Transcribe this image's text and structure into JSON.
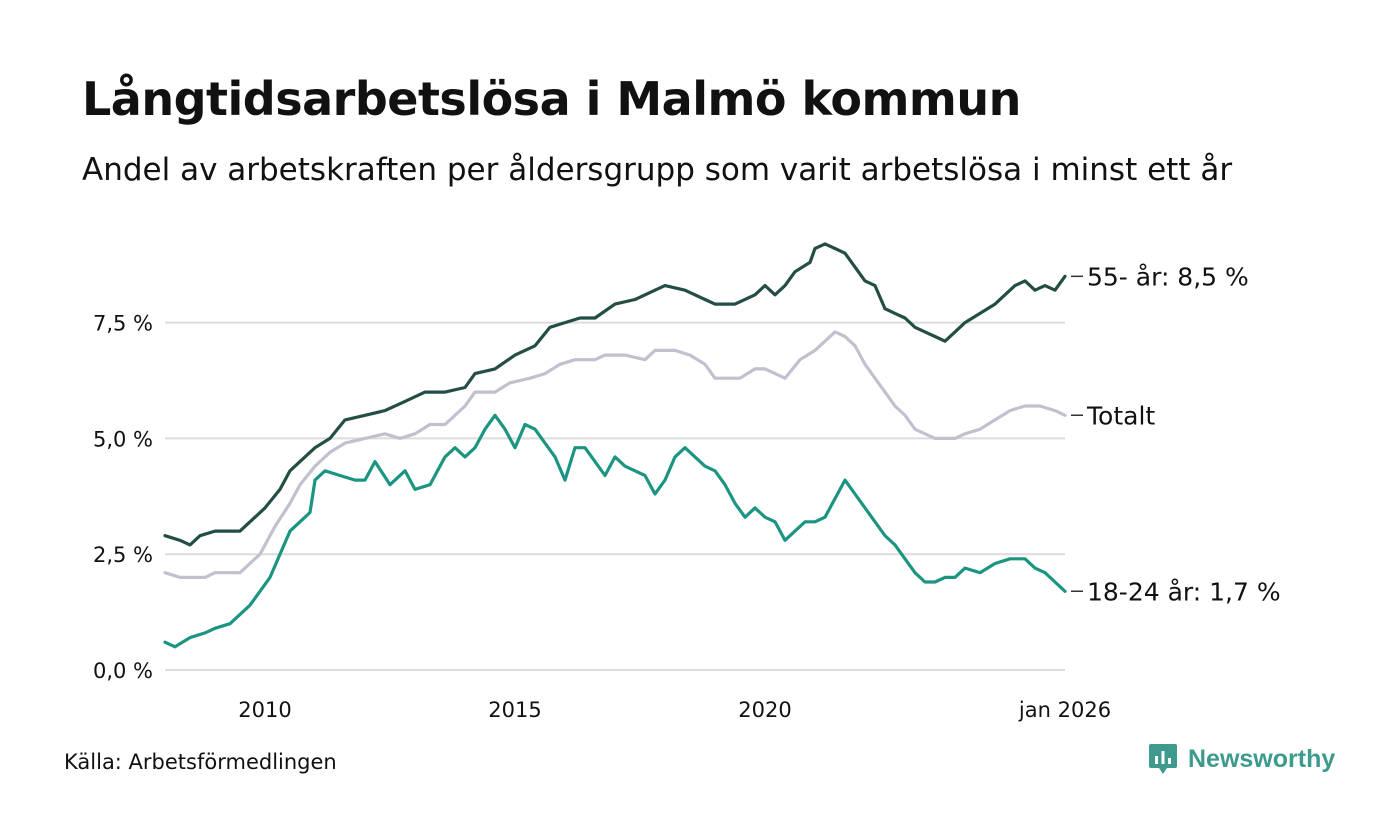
{
  "header": {
    "title": "Långtidsarbetslösa i Malmö kommun",
    "subtitle": "Andel av arbetskraften per åldersgrupp som varit arbetslösa i minst ett år"
  },
  "footer": {
    "source": "Källa: Arbetsförmedlingen",
    "brand": "Newsworthy"
  },
  "colors": {
    "age_55": "#234d45",
    "total": "#c3bfce",
    "age_18_24": "#1b9582",
    "grid": "#dcdcdc",
    "brand": "#3e9a8c"
  },
  "chart_data": {
    "type": "line",
    "title": "Långtidsarbetslösa i Malmö kommun",
    "subtitle": "Andel av arbetskraften per åldersgrupp som varit arbetslösa i minst ett år",
    "xlim": [
      2008.0,
      2026.0
    ],
    "ylim": [
      0,
      9.5
    ],
    "y_ticks": [
      0,
      2.5,
      5.0,
      7.5
    ],
    "y_tick_labels": [
      "0,0 %",
      "2,5 %",
      "5,0 %",
      "7,5 %"
    ],
    "x_ticks": [
      2010,
      2015,
      2020,
      2026.0
    ],
    "x_tick_labels": [
      "2010",
      "2015",
      "2020",
      "jan 2026"
    ],
    "grid": "horizontal",
    "series": [
      {
        "name": "55- år",
        "end_label": "55- år: 8,5 %",
        "color_key": "age_55",
        "points": [
          [
            2008.0,
            2.9
          ],
          [
            2008.3,
            2.8
          ],
          [
            2008.5,
            2.7
          ],
          [
            2008.7,
            2.9
          ],
          [
            2009.0,
            3.0
          ],
          [
            2009.5,
            3.0
          ],
          [
            2009.8,
            3.3
          ],
          [
            2010.0,
            3.5
          ],
          [
            2010.3,
            3.9
          ],
          [
            2010.5,
            4.3
          ],
          [
            2010.8,
            4.6
          ],
          [
            2011.0,
            4.8
          ],
          [
            2011.3,
            5.0
          ],
          [
            2011.6,
            5.4
          ],
          [
            2012.0,
            5.5
          ],
          [
            2012.4,
            5.6
          ],
          [
            2012.8,
            5.8
          ],
          [
            2013.2,
            6.0
          ],
          [
            2013.6,
            6.0
          ],
          [
            2014.0,
            6.1
          ],
          [
            2014.2,
            6.4
          ],
          [
            2014.6,
            6.5
          ],
          [
            2015.0,
            6.8
          ],
          [
            2015.4,
            7.0
          ],
          [
            2015.7,
            7.4
          ],
          [
            2016.0,
            7.5
          ],
          [
            2016.3,
            7.6
          ],
          [
            2016.6,
            7.6
          ],
          [
            2017.0,
            7.9
          ],
          [
            2017.4,
            8.0
          ],
          [
            2017.8,
            8.2
          ],
          [
            2018.0,
            8.3
          ],
          [
            2018.4,
            8.2
          ],
          [
            2018.8,
            8.0
          ],
          [
            2019.0,
            7.9
          ],
          [
            2019.4,
            7.9
          ],
          [
            2019.8,
            8.1
          ],
          [
            2020.0,
            8.3
          ],
          [
            2020.2,
            8.1
          ],
          [
            2020.4,
            8.3
          ],
          [
            2020.6,
            8.6
          ],
          [
            2020.9,
            8.8
          ],
          [
            2021.0,
            9.1
          ],
          [
            2021.2,
            9.2
          ],
          [
            2021.4,
            9.1
          ],
          [
            2021.6,
            9.0
          ],
          [
            2021.8,
            8.7
          ],
          [
            2022.0,
            8.4
          ],
          [
            2022.2,
            8.3
          ],
          [
            2022.4,
            7.8
          ],
          [
            2022.6,
            7.7
          ],
          [
            2022.8,
            7.6
          ],
          [
            2023.0,
            7.4
          ],
          [
            2023.2,
            7.3
          ],
          [
            2023.4,
            7.2
          ],
          [
            2023.6,
            7.1
          ],
          [
            2023.8,
            7.3
          ],
          [
            2024.0,
            7.5
          ],
          [
            2024.3,
            7.7
          ],
          [
            2024.6,
            7.9
          ],
          [
            2024.8,
            8.1
          ],
          [
            2025.0,
            8.3
          ],
          [
            2025.2,
            8.4
          ],
          [
            2025.4,
            8.2
          ],
          [
            2025.6,
            8.3
          ],
          [
            2025.8,
            8.2
          ],
          [
            2026.0,
            8.5
          ]
        ]
      },
      {
        "name": "Totalt",
        "end_label": "Totalt",
        "color_key": "total",
        "points": [
          [
            2008.0,
            2.1
          ],
          [
            2008.3,
            2.0
          ],
          [
            2008.8,
            2.0
          ],
          [
            2009.0,
            2.1
          ],
          [
            2009.5,
            2.1
          ],
          [
            2009.9,
            2.5
          ],
          [
            2010.2,
            3.1
          ],
          [
            2010.5,
            3.6
          ],
          [
            2010.7,
            4.0
          ],
          [
            2011.0,
            4.4
          ],
          [
            2011.3,
            4.7
          ],
          [
            2011.6,
            4.9
          ],
          [
            2012.0,
            5.0
          ],
          [
            2012.4,
            5.1
          ],
          [
            2012.7,
            5.0
          ],
          [
            2013.0,
            5.1
          ],
          [
            2013.3,
            5.3
          ],
          [
            2013.6,
            5.3
          ],
          [
            2013.8,
            5.5
          ],
          [
            2014.0,
            5.7
          ],
          [
            2014.2,
            6.0
          ],
          [
            2014.6,
            6.0
          ],
          [
            2014.9,
            6.2
          ],
          [
            2015.3,
            6.3
          ],
          [
            2015.6,
            6.4
          ],
          [
            2015.9,
            6.6
          ],
          [
            2016.2,
            6.7
          ],
          [
            2016.6,
            6.7
          ],
          [
            2016.8,
            6.8
          ],
          [
            2017.2,
            6.8
          ],
          [
            2017.6,
            6.7
          ],
          [
            2017.8,
            6.9
          ],
          [
            2018.2,
            6.9
          ],
          [
            2018.5,
            6.8
          ],
          [
            2018.8,
            6.6
          ],
          [
            2019.0,
            6.3
          ],
          [
            2019.5,
            6.3
          ],
          [
            2019.8,
            6.5
          ],
          [
            2020.0,
            6.5
          ],
          [
            2020.2,
            6.4
          ],
          [
            2020.4,
            6.3
          ],
          [
            2020.7,
            6.7
          ],
          [
            2021.0,
            6.9
          ],
          [
            2021.2,
            7.1
          ],
          [
            2021.4,
            7.3
          ],
          [
            2021.6,
            7.2
          ],
          [
            2021.8,
            7.0
          ],
          [
            2022.0,
            6.6
          ],
          [
            2022.2,
            6.3
          ],
          [
            2022.4,
            6.0
          ],
          [
            2022.6,
            5.7
          ],
          [
            2022.8,
            5.5
          ],
          [
            2023.0,
            5.2
          ],
          [
            2023.2,
            5.1
          ],
          [
            2023.4,
            5.0
          ],
          [
            2023.8,
            5.0
          ],
          [
            2024.0,
            5.1
          ],
          [
            2024.3,
            5.2
          ],
          [
            2024.6,
            5.4
          ],
          [
            2024.9,
            5.6
          ],
          [
            2025.2,
            5.7
          ],
          [
            2025.5,
            5.7
          ],
          [
            2025.8,
            5.6
          ],
          [
            2026.0,
            5.5
          ]
        ]
      },
      {
        "name": "18-24 år",
        "end_label": "18-24 år: 1,7 %",
        "color_key": "age_18_24",
        "points": [
          [
            2008.0,
            0.6
          ],
          [
            2008.2,
            0.5
          ],
          [
            2008.5,
            0.7
          ],
          [
            2008.8,
            0.8
          ],
          [
            2009.0,
            0.9
          ],
          [
            2009.3,
            1.0
          ],
          [
            2009.5,
            1.2
          ],
          [
            2009.7,
            1.4
          ],
          [
            2009.9,
            1.7
          ],
          [
            2010.1,
            2.0
          ],
          [
            2010.3,
            2.5
          ],
          [
            2010.5,
            3.0
          ],
          [
            2010.7,
            3.2
          ],
          [
            2010.9,
            3.4
          ],
          [
            2011.0,
            4.1
          ],
          [
            2011.2,
            4.3
          ],
          [
            2011.5,
            4.2
          ],
          [
            2011.8,
            4.1
          ],
          [
            2012.0,
            4.1
          ],
          [
            2012.2,
            4.5
          ],
          [
            2012.5,
            4.0
          ],
          [
            2012.8,
            4.3
          ],
          [
            2013.0,
            3.9
          ],
          [
            2013.3,
            4.0
          ],
          [
            2013.6,
            4.6
          ],
          [
            2013.8,
            4.8
          ],
          [
            2014.0,
            4.6
          ],
          [
            2014.2,
            4.8
          ],
          [
            2014.4,
            5.2
          ],
          [
            2014.6,
            5.5
          ],
          [
            2014.8,
            5.2
          ],
          [
            2015.0,
            4.8
          ],
          [
            2015.2,
            5.3
          ],
          [
            2015.4,
            5.2
          ],
          [
            2015.6,
            4.9
          ],
          [
            2015.8,
            4.6
          ],
          [
            2016.0,
            4.1
          ],
          [
            2016.2,
            4.8
          ],
          [
            2016.4,
            4.8
          ],
          [
            2016.6,
            4.5
          ],
          [
            2016.8,
            4.2
          ],
          [
            2017.0,
            4.6
          ],
          [
            2017.2,
            4.4
          ],
          [
            2017.4,
            4.3
          ],
          [
            2017.6,
            4.2
          ],
          [
            2017.8,
            3.8
          ],
          [
            2018.0,
            4.1
          ],
          [
            2018.2,
            4.6
          ],
          [
            2018.4,
            4.8
          ],
          [
            2018.6,
            4.6
          ],
          [
            2018.8,
            4.4
          ],
          [
            2019.0,
            4.3
          ],
          [
            2019.2,
            4.0
          ],
          [
            2019.4,
            3.6
          ],
          [
            2019.6,
            3.3
          ],
          [
            2019.8,
            3.5
          ],
          [
            2020.0,
            3.3
          ],
          [
            2020.2,
            3.2
          ],
          [
            2020.4,
            2.8
          ],
          [
            2020.6,
            3.0
          ],
          [
            2020.8,
            3.2
          ],
          [
            2021.0,
            3.2
          ],
          [
            2021.2,
            3.3
          ],
          [
            2021.4,
            3.7
          ],
          [
            2021.6,
            4.1
          ],
          [
            2021.8,
            3.8
          ],
          [
            2022.0,
            3.5
          ],
          [
            2022.2,
            3.2
          ],
          [
            2022.4,
            2.9
          ],
          [
            2022.6,
            2.7
          ],
          [
            2022.8,
            2.4
          ],
          [
            2023.0,
            2.1
          ],
          [
            2023.2,
            1.9
          ],
          [
            2023.4,
            1.9
          ],
          [
            2023.6,
            2.0
          ],
          [
            2023.8,
            2.0
          ],
          [
            2024.0,
            2.2
          ],
          [
            2024.3,
            2.1
          ],
          [
            2024.6,
            2.3
          ],
          [
            2024.9,
            2.4
          ],
          [
            2025.2,
            2.4
          ],
          [
            2025.4,
            2.2
          ],
          [
            2025.6,
            2.1
          ],
          [
            2025.8,
            1.9
          ],
          [
            2026.0,
            1.7
          ]
        ]
      }
    ]
  }
}
